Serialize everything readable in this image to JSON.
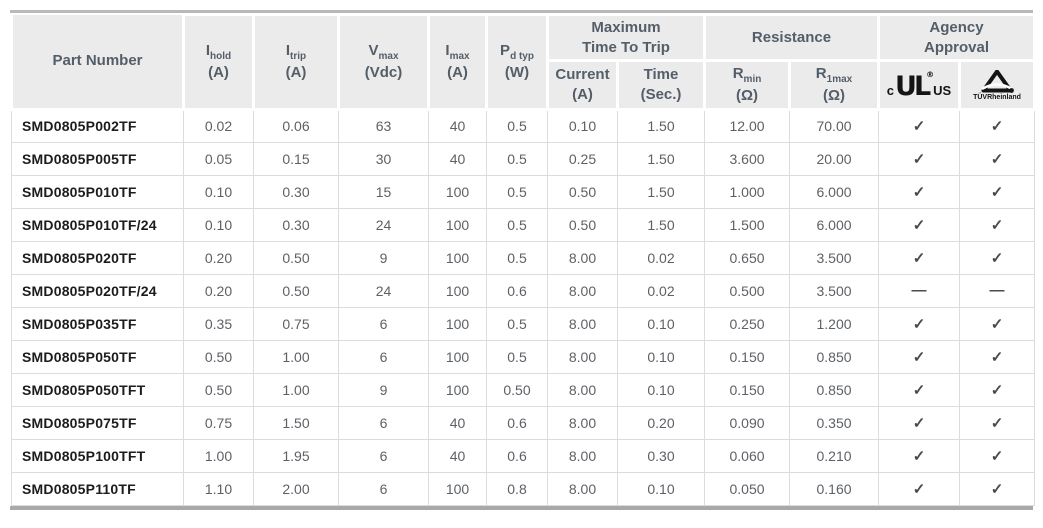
{
  "colors": {
    "header_bg": "#ebebeb",
    "header_text": "#545e69",
    "body_text": "#5d6166",
    "part_text": "#1c1c1c",
    "grid_line": "#dcdcdc",
    "top_rule": "#b9b9b9",
    "bottom_rule": "#a9a9a9",
    "mark_color": "#4a4a4a",
    "logo_color": "#141414"
  },
  "logos": {
    "ul": {
      "prefix": "c",
      "core": "UL",
      "reg": "®",
      "suffix": "US"
    },
    "tuv": {
      "caption": "TÜVRheinland"
    }
  },
  "table": {
    "columns": [
      {
        "label": "Part Number"
      },
      {
        "base": "I",
        "sub": "hold",
        "unit": "(A)"
      },
      {
        "base": "I",
        "sub": "trip",
        "unit": "(A)"
      },
      {
        "base": "V",
        "sub": "max",
        "unit": "(Vdc)"
      },
      {
        "base": "I",
        "sub": "max",
        "unit": "(A)"
      },
      {
        "base": "P",
        "sub": "d typ",
        "unit": "(W)"
      }
    ],
    "groups": [
      {
        "label": "Maximum\nTime To Trip"
      },
      {
        "label": "Resistance"
      },
      {
        "label": "Agency\nApproval"
      }
    ],
    "subcolumns": [
      {
        "label": "Current",
        "unit": "(A)"
      },
      {
        "label": "Time",
        "unit": "(Sec.)"
      },
      {
        "base": "R",
        "sub": "min",
        "unit": "(Ω)"
      },
      {
        "base": "R",
        "sub": "1max",
        "unit": "(Ω)"
      }
    ],
    "row_keys": [
      "part",
      "ihold",
      "itrip",
      "vmax",
      "imax",
      "pd",
      "trip_current",
      "trip_time",
      "rmin",
      "r1max",
      "ul",
      "tuv"
    ],
    "rows": [
      {
        "part": "SMD0805P002TF",
        "ihold": "0.02",
        "itrip": "0.06",
        "vmax": "63",
        "imax": "40",
        "pd": "0.5",
        "trip_current": "0.10",
        "trip_time": "1.50",
        "rmin": "12.00",
        "r1max": "70.00",
        "ul": "✓",
        "tuv": "✓"
      },
      {
        "part": "SMD0805P005TF",
        "ihold": "0.05",
        "itrip": "0.15",
        "vmax": "30",
        "imax": "40",
        "pd": "0.5",
        "trip_current": "0.25",
        "trip_time": "1.50",
        "rmin": "3.600",
        "r1max": "20.00",
        "ul": "✓",
        "tuv": "✓"
      },
      {
        "part": "SMD0805P010TF",
        "ihold": "0.10",
        "itrip": "0.30",
        "vmax": "15",
        "imax": "100",
        "pd": "0.5",
        "trip_current": "0.50",
        "trip_time": "1.50",
        "rmin": "1.000",
        "r1max": "6.000",
        "ul": "✓",
        "tuv": "✓"
      },
      {
        "part": "SMD0805P010TF/24",
        "ihold": "0.10",
        "itrip": "0.30",
        "vmax": "24",
        "imax": "100",
        "pd": "0.5",
        "trip_current": "0.50",
        "trip_time": "1.50",
        "rmin": "1.500",
        "r1max": "6.000",
        "ul": "✓",
        "tuv": "✓"
      },
      {
        "part": "SMD0805P020TF",
        "ihold": "0.20",
        "itrip": "0.50",
        "vmax": "9",
        "imax": "100",
        "pd": "0.5",
        "trip_current": "8.00",
        "trip_time": "0.02",
        "rmin": "0.650",
        "r1max": "3.500",
        "ul": "✓",
        "tuv": "✓"
      },
      {
        "part": "SMD0805P020TF/24",
        "ihold": "0.20",
        "itrip": "0.50",
        "vmax": "24",
        "imax": "100",
        "pd": "0.6",
        "trip_current": "8.00",
        "trip_time": "0.02",
        "rmin": "0.500",
        "r1max": "3.500",
        "ul": "—",
        "tuv": "—"
      },
      {
        "part": "SMD0805P035TF",
        "ihold": "0.35",
        "itrip": "0.75",
        "vmax": "6",
        "imax": "100",
        "pd": "0.5",
        "trip_current": "8.00",
        "trip_time": "0.10",
        "rmin": "0.250",
        "r1max": "1.200",
        "ul": "✓",
        "tuv": "✓"
      },
      {
        "part": "SMD0805P050TF",
        "ihold": "0.50",
        "itrip": "1.00",
        "vmax": "6",
        "imax": "100",
        "pd": "0.5",
        "trip_current": "8.00",
        "trip_time": "0.10",
        "rmin": "0.150",
        "r1max": "0.850",
        "ul": "✓",
        "tuv": "✓"
      },
      {
        "part": "SMD0805P050TFT",
        "ihold": "0.50",
        "itrip": "1.00",
        "vmax": "9",
        "imax": "100",
        "pd": "0.50",
        "trip_current": "8.00",
        "trip_time": "0.10",
        "rmin": "0.150",
        "r1max": "0.850",
        "ul": "✓",
        "tuv": "✓"
      },
      {
        "part": "SMD0805P075TF",
        "ihold": "0.75",
        "itrip": "1.50",
        "vmax": "6",
        "imax": "40",
        "pd": "0.6",
        "trip_current": "8.00",
        "trip_time": "0.20",
        "rmin": "0.090",
        "r1max": "0.350",
        "ul": "✓",
        "tuv": "✓"
      },
      {
        "part": "SMD0805P100TFT",
        "ihold": "1.00",
        "itrip": "1.95",
        "vmax": "6",
        "imax": "40",
        "pd": "0.6",
        "trip_current": "8.00",
        "trip_time": "0.30",
        "rmin": "0.060",
        "r1max": "0.210",
        "ul": "✓",
        "tuv": "✓"
      },
      {
        "part": "SMD0805P110TF",
        "ihold": "1.10",
        "itrip": "2.00",
        "vmax": "6",
        "imax": "100",
        "pd": "0.8",
        "trip_current": "8.00",
        "trip_time": "0.10",
        "rmin": "0.050",
        "r1max": "0.160",
        "ul": "✓",
        "tuv": "✓"
      }
    ]
  }
}
